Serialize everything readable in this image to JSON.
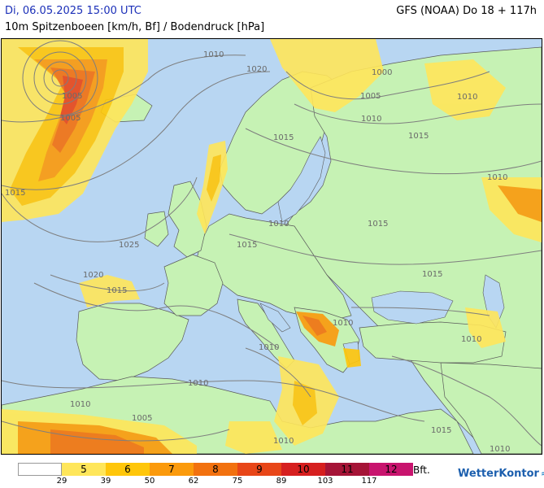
{
  "header": {
    "date": "Di, 06.05.2025 15:00 UTC",
    "subtitle": "10m Spitzenboeen [km/h, Bf] / Bodendruck [hPa]",
    "model": "GFS (NOAA) Do 18 + 117h"
  },
  "map": {
    "sea_color": "#b8d6f2",
    "land_color": "#c6f2b4",
    "isobar_labels": [
      {
        "text": "1010"
      },
      {
        "text": "1020"
      },
      {
        "text": "1000"
      },
      {
        "text": "1005"
      },
      {
        "text": "1010"
      },
      {
        "text": "1005"
      },
      {
        "text": "1005"
      },
      {
        "text": "1010"
      },
      {
        "text": "1015"
      },
      {
        "text": "1015"
      },
      {
        "text": "1010"
      },
      {
        "text": "1015"
      },
      {
        "text": "1010"
      },
      {
        "text": "1025"
      },
      {
        "text": "1015"
      },
      {
        "text": "1015"
      },
      {
        "text": "1020"
      },
      {
        "text": "1015"
      },
      {
        "text": "1015"
      },
      {
        "text": "1010"
      },
      {
        "text": "1010"
      },
      {
        "text": "1010"
      },
      {
        "text": "1010"
      },
      {
        "text": "1010"
      },
      {
        "text": "1015"
      },
      {
        "text": "1005"
      },
      {
        "text": "1010"
      },
      {
        "text": "1010"
      }
    ]
  },
  "legend": {
    "bft_label": "Bft.",
    "cells": [
      {
        "label": "",
        "color": "#ffffff"
      },
      {
        "label": "5",
        "color": "#ffe65a"
      },
      {
        "label": "6",
        "color": "#ffc60a"
      },
      {
        "label": "7",
        "color": "#fb9a0c"
      },
      {
        "label": "8",
        "color": "#f2710f"
      },
      {
        "label": "9",
        "color": "#e84618"
      },
      {
        "label": "10",
        "color": "#d61f1f"
      },
      {
        "label": "11",
        "color": "#a51437"
      },
      {
        "label": "12",
        "color": "#c8146e"
      }
    ],
    "kmh": [
      "29",
      "39",
      "50",
      "62",
      "75",
      "89",
      "103",
      "117"
    ]
  },
  "brand": {
    "name": "WetterKontor",
    "logo_icon": "wind-swirl-icon"
  }
}
